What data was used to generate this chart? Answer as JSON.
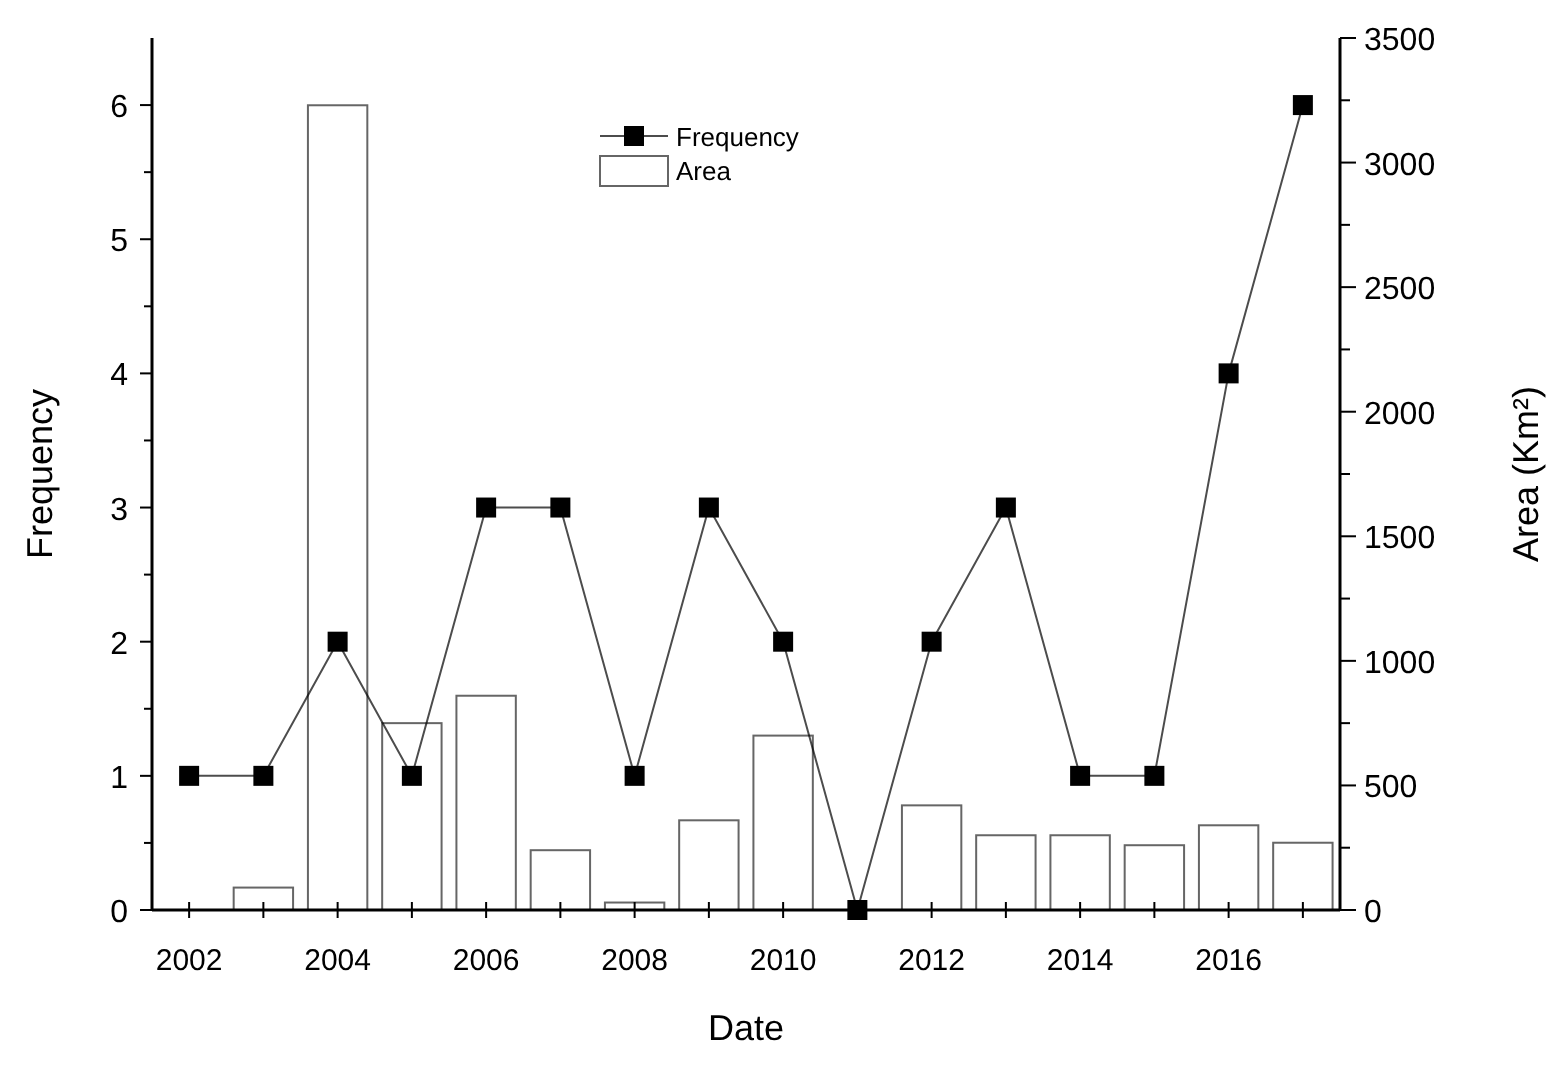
{
  "chart_data": {
    "type": "bar",
    "xlabel": "Date",
    "ylabel": "Frequency",
    "y2label": "Area (Km²)",
    "x": [
      2002,
      2003,
      2004,
      2005,
      2006,
      2007,
      2008,
      2009,
      2010,
      2011,
      2012,
      2013,
      2014,
      2015,
      2016,
      2017
    ],
    "xlim": [
      2001.5,
      2017.5
    ],
    "xticks": [
      2002,
      {
        "value": 2003,
        "label": null
      },
      2004,
      {
        "value": 2005,
        "label": null
      },
      2006,
      {
        "value": 2007,
        "label": null
      },
      2008,
      {
        "value": 2009,
        "label": null
      },
      2010,
      {
        "value": 2011,
        "label": null
      },
      2012,
      {
        "value": 2013,
        "label": null
      },
      2014,
      {
        "value": 2015,
        "label": null
      },
      2016,
      {
        "value": 2017,
        "label": null
      }
    ],
    "ylim": [
      0,
      6.5
    ],
    "yticks": [
      0,
      {
        "value": 0.5,
        "label": null
      },
      1,
      {
        "value": 1.5,
        "label": null
      },
      2,
      {
        "value": 2.5,
        "label": null
      },
      3,
      {
        "value": 3.5,
        "label": null
      },
      4,
      {
        "value": 4.5,
        "label": null
      },
      5,
      {
        "value": 5.5,
        "label": null
      },
      6
    ],
    "y2lim": [
      0,
      3500
    ],
    "y2ticks": [
      0,
      {
        "value": 250,
        "label": null
      },
      500,
      {
        "value": 750,
        "label": null
      },
      1000,
      {
        "value": 1250,
        "label": null
      },
      1500,
      {
        "value": 1750,
        "label": null
      },
      2000,
      {
        "value": 2250,
        "label": null
      },
      2500,
      {
        "value": 2750,
        "label": null
      },
      3000,
      {
        "value": 3250,
        "label": null
      },
      3500
    ],
    "series": [
      {
        "name": "Area",
        "axis": "y2",
        "color": "#ffffff",
        "values": [
          null,
          90,
          3230,
          750,
          860,
          240,
          30,
          360,
          700,
          null,
          420,
          300,
          300,
          260,
          340,
          270
        ]
      },
      {
        "name": "Frequency",
        "type": "line",
        "color": "#000000",
        "marker": "square",
        "line_style": "solid",
        "values": [
          1,
          1,
          2,
          1,
          3,
          3,
          1,
          3,
          2,
          0,
          2,
          3,
          1,
          1,
          4,
          6
        ]
      }
    ],
    "legend": "top",
    "grid": false
  }
}
